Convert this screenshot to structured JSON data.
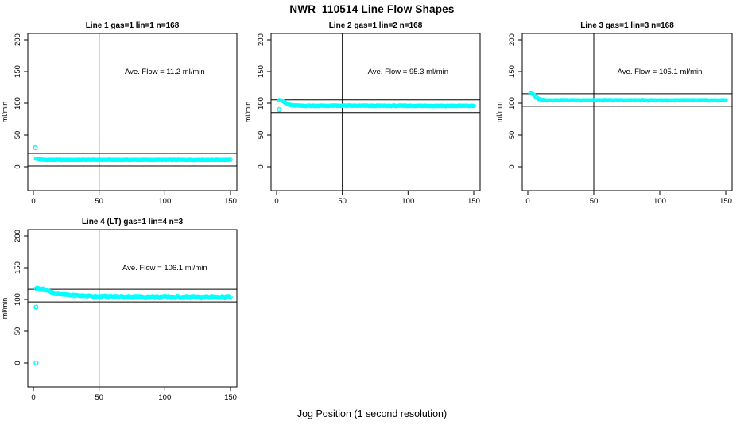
{
  "figure": {
    "title": "NWR_110514  Line Flow Shapes",
    "xlabel": "Jog Position (1 second resolution)",
    "background_color": "#ffffff",
    "point_color": "#00ffff",
    "axis_color": "#000000"
  },
  "chart_data": [
    {
      "type": "scatter",
      "title": "Line 1 gas=1 lin=1 n=168",
      "annotation": "Ave. Flow =  11.2  ml/min",
      "ave_flow_ml_min": 11.2,
      "n": 168,
      "ylabel": "ml/min",
      "xlim": [
        0,
        150
      ],
      "ylim": [
        0,
        200
      ],
      "xticks": [
        0,
        50,
        100,
        150
      ],
      "yticks": [
        0,
        50,
        100,
        150,
        200
      ],
      "vline_x": 50,
      "hlines": [
        21.2,
        1.2
      ],
      "annotation_at": {
        "x": 100,
        "y": 150
      },
      "series": {
        "name": "line1-flow",
        "x_start": 2,
        "x_end": 150,
        "n_points": 168,
        "jitter": 0.35,
        "shape_keypoints": [
          [
            2,
            13
          ],
          [
            5,
            11.5
          ],
          [
            8,
            11
          ],
          [
            150,
            11
          ]
        ]
      },
      "outliers": [
        [
          1.5,
          30
        ]
      ]
    },
    {
      "type": "scatter",
      "title": "Line 2 gas=1 lin=2 n=168",
      "annotation": "Ave. Flow =  95.3  ml/min",
      "ave_flow_ml_min": 95.3,
      "n": 168,
      "ylabel": "ml/min",
      "xlim": [
        0,
        150
      ],
      "ylim": [
        0,
        200
      ],
      "xticks": [
        0,
        50,
        100,
        150
      ],
      "yticks": [
        0,
        50,
        100,
        150,
        200
      ],
      "vline_x": 50,
      "hlines": [
        105.3,
        85.3
      ],
      "annotation_at": {
        "x": 100,
        "y": 150
      },
      "series": {
        "name": "line2-flow",
        "x_start": 2,
        "x_end": 150,
        "n_points": 168,
        "jitter": 0.5,
        "shape_keypoints": [
          [
            2,
            105.5
          ],
          [
            4,
            104.5
          ],
          [
            6,
            101.5
          ],
          [
            9,
            98
          ],
          [
            12,
            96.5
          ],
          [
            18,
            96
          ],
          [
            150,
            95.8
          ]
        ]
      },
      "outliers": [
        [
          2,
          90
        ]
      ]
    },
    {
      "type": "scatter",
      "title": "Line 3 gas=1 lin=3 n=168",
      "annotation": "Ave. Flow =  105.1  ml/min",
      "ave_flow_ml_min": 105.1,
      "n": 168,
      "ylabel": "ml/min",
      "xlim": [
        0,
        150
      ],
      "ylim": [
        0,
        200
      ],
      "xticks": [
        0,
        50,
        100,
        150
      ],
      "yticks": [
        0,
        50,
        100,
        150,
        200
      ],
      "vline_x": 50,
      "hlines": [
        115.1,
        95.1
      ],
      "annotation_at": {
        "x": 100,
        "y": 150
      },
      "series": {
        "name": "line3-flow",
        "x_start": 2,
        "x_end": 150,
        "n_points": 168,
        "jitter": 0.4,
        "shape_keypoints": [
          [
            2,
            116
          ],
          [
            4,
            114.5
          ],
          [
            6,
            110
          ],
          [
            8,
            107
          ],
          [
            11,
            105.3
          ],
          [
            15,
            104.8
          ],
          [
            150,
            104.6
          ]
        ]
      },
      "outliers": []
    },
    {
      "type": "scatter",
      "title": "Line 4 (LT) gas=1 lin=4 n=3",
      "annotation": "Ave. Flow =  106.1  ml/min",
      "ave_flow_ml_min": 106.1,
      "n": 3,
      "ylabel": "ml/min",
      "xlim": [
        0,
        150
      ],
      "ylim": [
        0,
        200
      ],
      "xticks": [
        0,
        50,
        100,
        150
      ],
      "yticks": [
        0,
        50,
        100,
        150,
        200
      ],
      "vline_x": 50,
      "hlines": [
        116.1,
        96.1
      ],
      "annotation_at": {
        "x": 100,
        "y": 150
      },
      "series": {
        "name": "line4-flow",
        "x_start": 2,
        "x_end": 150,
        "n_points": 168,
        "jitter": 1.0,
        "shape_keypoints": [
          [
            2,
            118
          ],
          [
            5,
            117.5
          ],
          [
            8,
            116
          ],
          [
            12,
            113
          ],
          [
            16,
            110.5
          ],
          [
            22,
            108
          ],
          [
            30,
            106.5
          ],
          [
            40,
            105.5
          ],
          [
            55,
            104.8
          ],
          [
            80,
            104.4
          ],
          [
            150,
            104.2
          ]
        ]
      },
      "outliers": [
        [
          2,
          88
        ],
        [
          2,
          0
        ]
      ]
    }
  ]
}
